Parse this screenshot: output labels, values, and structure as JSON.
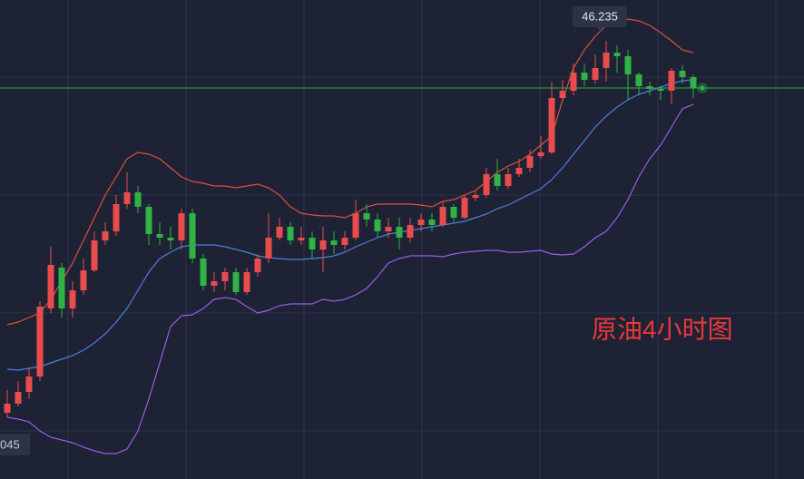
{
  "chart_data": {
    "type": "candlestick",
    "annotation": "原油4小时图",
    "price_tag": "045",
    "ylim": [
      41.405,
      46.685
    ],
    "grid": true,
    "up_color": "#e84c4c",
    "down_color": "#2fb344",
    "last_price_color": "#2fb344",
    "candles": [
      [
        42.135,
        42.385,
        42.085,
        42.235
      ],
      [
        42.235,
        42.485,
        42.205,
        42.365
      ],
      [
        42.365,
        42.635,
        42.285,
        42.535
      ],
      [
        42.535,
        43.365,
        42.485,
        43.305
      ],
      [
        43.285,
        43.965,
        43.235,
        43.765
      ],
      [
        43.735,
        43.785,
        43.185,
        43.285
      ],
      [
        43.285,
        43.585,
        43.185,
        43.485
      ],
      [
        43.485,
        43.835,
        43.435,
        43.705
      ],
      [
        43.705,
        44.135,
        43.685,
        44.035
      ],
      [
        44.035,
        44.235,
        43.985,
        44.135
      ],
      [
        44.135,
        44.535,
        44.085,
        44.435
      ],
      [
        44.435,
        44.785,
        44.385,
        44.565
      ],
      [
        44.565,
        44.635,
        44.335,
        44.405
      ],
      [
        44.405,
        44.435,
        43.985,
        44.105
      ],
      [
        44.105,
        44.235,
        43.985,
        44.065
      ],
      [
        44.065,
        44.185,
        43.935,
        44.035
      ],
      [
        44.035,
        44.385,
        43.935,
        44.335
      ],
      [
        44.335,
        44.385,
        43.785,
        43.835
      ],
      [
        43.835,
        43.885,
        43.485,
        43.535
      ],
      [
        43.535,
        43.685,
        43.465,
        43.585
      ],
      [
        43.585,
        43.735,
        43.485,
        43.685
      ],
      [
        43.685,
        43.735,
        43.435,
        43.465
      ],
      [
        43.465,
        43.735,
        43.435,
        43.685
      ],
      [
        43.685,
        43.885,
        43.635,
        43.835
      ],
      [
        43.835,
        44.335,
        43.785,
        44.065
      ],
      [
        44.065,
        44.285,
        44.035,
        44.185
      ],
      [
        44.185,
        44.235,
        43.985,
        44.035
      ],
      [
        44.035,
        44.185,
        43.985,
        44.065
      ],
      [
        44.065,
        44.135,
        43.835,
        43.935
      ],
      [
        43.935,
        44.185,
        43.685,
        44.035
      ],
      [
        44.035,
        44.135,
        43.885,
        43.985
      ],
      [
        43.985,
        44.135,
        43.935,
        44.065
      ],
      [
        44.065,
        44.485,
        44.035,
        44.335
      ],
      [
        44.335,
        44.435,
        44.185,
        44.265
      ],
      [
        44.265,
        44.335,
        44.065,
        44.135
      ],
      [
        44.135,
        44.285,
        44.065,
        44.185
      ],
      [
        44.185,
        44.285,
        43.935,
        44.065
      ],
      [
        44.065,
        44.285,
        44.005,
        44.205
      ],
      [
        44.205,
        44.335,
        44.135,
        44.265
      ],
      [
        44.265,
        44.335,
        44.135,
        44.205
      ],
      [
        44.205,
        44.465,
        44.185,
        44.405
      ],
      [
        44.405,
        44.435,
        44.235,
        44.285
      ],
      [
        44.285,
        44.535,
        44.265,
        44.505
      ],
      [
        44.505,
        44.585,
        44.465,
        44.535
      ],
      [
        44.535,
        44.835,
        44.505,
        44.765
      ],
      [
        44.765,
        44.935,
        44.585,
        44.635
      ],
      [
        44.635,
        44.835,
        44.605,
        44.765
      ],
      [
        44.765,
        44.935,
        44.735,
        44.835
      ],
      [
        44.835,
        45.035,
        44.785,
        44.965
      ],
      [
        44.965,
        45.185,
        44.935,
        45.005
      ],
      [
        45.005,
        45.785,
        44.985,
        45.605
      ],
      [
        45.605,
        45.805,
        45.565,
        45.685
      ],
      [
        45.685,
        45.985,
        45.635,
        45.885
      ],
      [
        45.885,
        45.985,
        45.735,
        45.805
      ],
      [
        45.805,
        46.085,
        45.765,
        45.935
      ],
      [
        45.935,
        46.235,
        45.785,
        46.105
      ],
      [
        46.105,
        46.185,
        45.885,
        46.065
      ],
      [
        46.065,
        46.135,
        45.585,
        45.865
      ],
      [
        45.865,
        45.885,
        45.635,
        45.735
      ],
      [
        45.735,
        45.785,
        45.635,
        45.705
      ],
      [
        45.705,
        45.735,
        45.585,
        45.685
      ],
      [
        45.685,
        45.935,
        45.535,
        45.905
      ],
      [
        45.905,
        45.965,
        45.765,
        45.835
      ],
      [
        45.835,
        45.865,
        45.605,
        45.715
      ]
    ],
    "bands": [
      {
        "color": "#d9503f",
        "values": [
          43.105,
          43.135,
          43.185,
          43.235,
          43.385,
          43.585,
          43.785,
          44.035,
          44.285,
          44.535,
          44.735,
          44.935,
          45.005,
          44.985,
          44.935,
          44.835,
          44.735,
          44.685,
          44.665,
          44.635,
          44.635,
          44.615,
          44.635,
          44.655,
          44.615,
          44.535,
          44.405,
          44.335,
          44.315,
          44.305,
          44.305,
          44.285,
          44.335,
          44.405,
          44.435,
          44.435,
          44.435,
          44.435,
          44.425,
          44.405,
          44.465,
          44.485,
          44.535,
          44.585,
          44.685,
          44.785,
          44.855,
          44.905,
          44.985,
          45.085,
          45.185,
          45.585,
          45.935,
          46.135,
          46.285,
          46.405,
          46.465,
          46.475,
          46.455,
          46.405,
          46.325,
          46.235,
          46.135,
          46.105
        ]
      },
      {
        "color": "#4c7fe0",
        "values": [
          42.615,
          42.605,
          42.625,
          42.645,
          42.685,
          42.725,
          42.765,
          42.825,
          42.905,
          43.005,
          43.135,
          43.285,
          43.485,
          43.685,
          43.835,
          43.905,
          43.965,
          43.985,
          43.985,
          43.985,
          43.965,
          43.935,
          43.905,
          43.865,
          43.845,
          43.835,
          43.825,
          43.825,
          43.835,
          43.845,
          43.865,
          43.905,
          43.965,
          44.015,
          44.065,
          44.105,
          44.125,
          44.145,
          44.165,
          44.185,
          44.205,
          44.225,
          44.245,
          44.285,
          44.325,
          44.385,
          44.425,
          44.485,
          44.545,
          44.605,
          44.705,
          44.835,
          44.985,
          45.135,
          45.285,
          45.405,
          45.505,
          45.585,
          45.645,
          45.685,
          45.725,
          45.765,
          45.795,
          45.805
        ]
      },
      {
        "color": "#9b5de5",
        "values": [
          42.085,
          42.065,
          42.035,
          41.935,
          41.865,
          41.835,
          41.805,
          41.755,
          41.715,
          41.685,
          41.685,
          41.735,
          41.935,
          42.285,
          42.685,
          43.085,
          43.205,
          43.215,
          43.285,
          43.385,
          43.405,
          43.385,
          43.305,
          43.235,
          43.265,
          43.315,
          43.335,
          43.335,
          43.335,
          43.385,
          43.365,
          43.385,
          43.435,
          43.505,
          43.635,
          43.785,
          43.835,
          43.865,
          43.865,
          43.865,
          43.855,
          43.885,
          43.905,
          43.915,
          43.925,
          43.925,
          43.905,
          43.905,
          43.915,
          43.925,
          43.885,
          43.875,
          43.885,
          43.965,
          44.065,
          44.135,
          44.285,
          44.485,
          44.735,
          44.935,
          45.085,
          45.285,
          45.485,
          45.535
        ]
      }
    ]
  }
}
